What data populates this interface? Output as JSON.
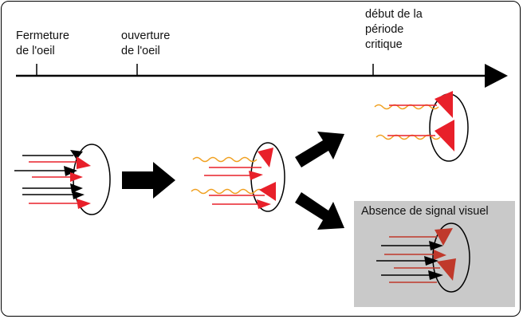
{
  "timeline": {
    "label_closure": "Fermeture\nde l'oeil",
    "label_opening": "ouverture\nde l'oeil",
    "label_critical": "début de la\npériode\ncritique"
  },
  "outcome_deprived": {
    "label": "Absence de signal visuel"
  },
  "colors": {
    "arrow": "#000000",
    "input_red": "#e8202a",
    "input_black": "#000000",
    "signal_wave": "#f0a020",
    "deprived_box": "#c9c9c9",
    "deprived_input": "#c0392b"
  },
  "icons": {
    "flow_arrow": "block-arrow-right",
    "neuron": "ellipse-cell",
    "synapse": "triangle-terminal"
  }
}
